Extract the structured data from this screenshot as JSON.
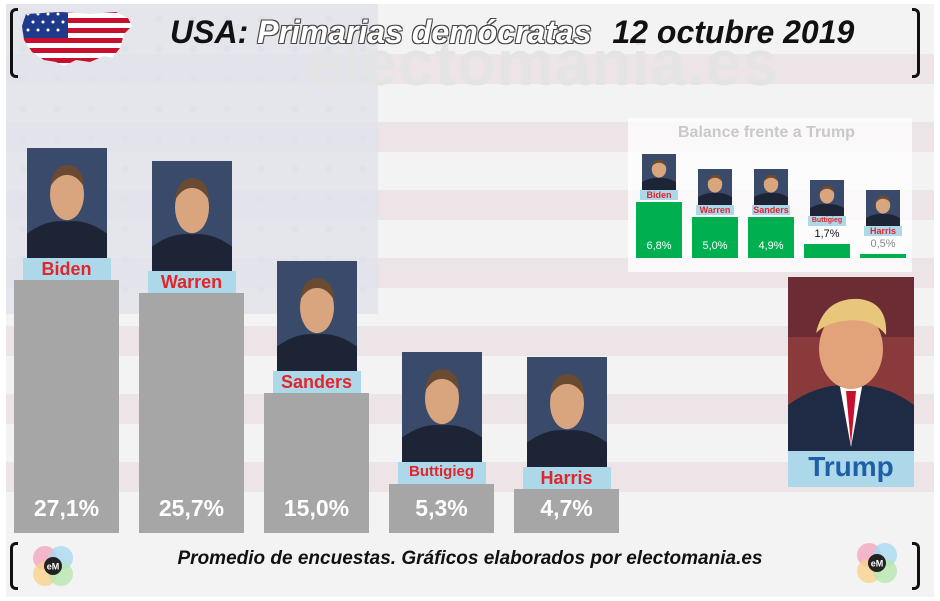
{
  "header": {
    "title_country": "USA",
    "title_colon": ":",
    "title_main": "Primarias demócratas",
    "title_date": "12 octubre 2019"
  },
  "watermark": "electomania.es",
  "footer": {
    "text": "Promedio de encuestas. Gráficos elaborados por electomania.es",
    "logo_text": "eM"
  },
  "trump_label": "Trump",
  "colors": {
    "bar": "#a6a6a6",
    "inset_bar": "#00b050",
    "label_background": "#add8ea",
    "label_text": "#e2252b",
    "trump_label_text": "#1f5fa8"
  },
  "chart_data": [
    {
      "type": "bar",
      "title": "",
      "categories": [
        "Biden",
        "Warren",
        "Sanders",
        "Buttigieg",
        "Harris"
      ],
      "values": [
        27.1,
        25.7,
        15.0,
        5.3,
        4.7
      ],
      "value_labels": [
        "27,1%",
        "25,7%",
        "15,0%",
        "5,3%",
        "4,7%"
      ],
      "unit": "%",
      "ylim": [
        0,
        30
      ],
      "grid": false,
      "legend": "none"
    },
    {
      "type": "bar",
      "title": "Balance frente a Trump",
      "categories": [
        "Biden",
        "Warren",
        "Sanders",
        "Buttigieg",
        "Harris"
      ],
      "values": [
        6.8,
        5.0,
        4.9,
        1.7,
        0.5
      ],
      "value_labels": [
        "6,8%",
        "5,0%",
        "4,9%",
        "1,7%",
        "0,5%"
      ],
      "unit": "%",
      "ylim": [
        0,
        7
      ],
      "grid": false,
      "legend": "none"
    }
  ]
}
